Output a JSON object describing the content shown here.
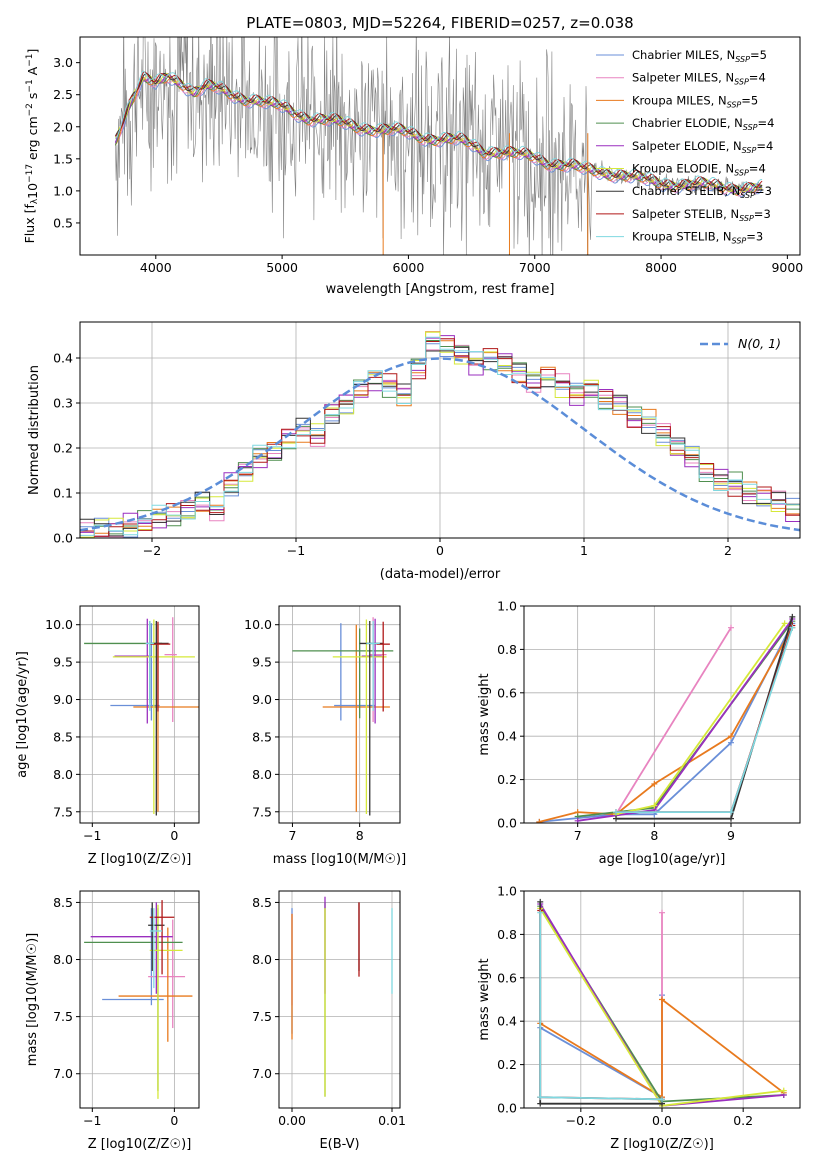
{
  "title": "PLATE=0803, MJD=52264, FIBERID=0257, z=0.038",
  "colors": {
    "data_spectrum": "#808080",
    "normal_curve": "#5b8dd8",
    "grid": "#b0b0b0"
  },
  "models": [
    {
      "name": "Chabrier MILES",
      "nssp": "5",
      "color": "#6a8fd8"
    },
    {
      "name": "Salpeter MILES",
      "nssp": "4",
      "color": "#e884c0"
    },
    {
      "name": "Kroupa MILES",
      "nssp": "5",
      "color": "#e87a1e"
    },
    {
      "name": "Chabrier ELODIE",
      "nssp": "4",
      "color": "#4f8f4f"
    },
    {
      "name": "Salpeter ELODIE",
      "nssp": "4",
      "color": "#9a2fbf"
    },
    {
      "name": "Kroupa ELODIE",
      "nssp": "4",
      "color": "#d6e83a"
    },
    {
      "name": "Chabrier STELIB",
      "nssp": "3",
      "color": "#333333"
    },
    {
      "name": "Salpeter STELIB",
      "nssp": "3",
      "color": "#b01818"
    },
    {
      "name": "Kroupa STELIB",
      "nssp": "3",
      "color": "#7fd8e0"
    }
  ],
  "chart_data": [
    {
      "id": "spectrum",
      "type": "line",
      "title": "PLATE=0803, MJD=52264, FIBERID=0257, z=0.038",
      "xlabel": "wavelength [Angstrom, rest frame]",
      "ylabel_parts": [
        "Flux [f",
        "λ",
        "10",
        "−17",
        " erg cm",
        "−2",
        " s",
        "−1",
        " A",
        "−1",
        "]"
      ],
      "xlim": [
        3400,
        9100
      ],
      "ylim": [
        0,
        3.4
      ],
      "xticks": [
        "4000",
        "5000",
        "6000",
        "7000",
        "8000",
        "9000"
      ],
      "yticks": [
        "0.5",
        "1.0",
        "1.5",
        "2.0",
        "2.5",
        "3.0"
      ],
      "grid": false,
      "legend_position": "top-right",
      "legend_nssp_label": "SSP",
      "model_continuum": {
        "x": [
          3680,
          3800,
          3900,
          4000,
          4100,
          4200,
          4300,
          4400,
          4500,
          4600,
          4700,
          4800,
          4900,
          5000,
          5100,
          5200,
          5300,
          5400,
          5500,
          5600,
          5700,
          5800,
          5900,
          6000,
          6100,
          6200,
          6300,
          6400,
          6500,
          6600,
          6700,
          6800,
          6900,
          7000,
          7100,
          7200,
          7300,
          7400,
          7500,
          7600,
          7700,
          7800,
          7900,
          8000,
          8200,
          8400,
          8600,
          8800
        ],
        "y": [
          1.8,
          2.4,
          2.75,
          2.65,
          2.78,
          2.7,
          2.55,
          2.62,
          2.58,
          2.5,
          2.45,
          2.42,
          2.35,
          2.3,
          2.22,
          2.15,
          2.12,
          2.08,
          2.04,
          2.0,
          1.98,
          1.95,
          1.93,
          1.9,
          1.85,
          1.82,
          1.8,
          1.78,
          1.72,
          1.62,
          1.62,
          1.58,
          1.55,
          1.52,
          1.45,
          1.42,
          1.38,
          1.32,
          1.3,
          1.28,
          1.25,
          1.2,
          1.15,
          1.12,
          1.1,
          1.08,
          1.05,
          1.03
        ]
      }
    },
    {
      "id": "residuals",
      "type": "histogram",
      "xlabel": "(data-model)/error",
      "ylabel": "Normed distribution",
      "xlim": [
        -2.5,
        2.5
      ],
      "ylim": [
        0,
        0.48
      ],
      "xticks": [
        "−2",
        "−1",
        "0",
        "1",
        "2"
      ],
      "yticks": [
        "0.0",
        "0.1",
        "0.2",
        "0.3",
        "0.4"
      ],
      "grid": true,
      "legend_position": "top-right",
      "normal_label": "N(0, 1)",
      "bin_width": 0.1,
      "bins_from": -2.5,
      "base_heights": [
        0.015,
        0.02,
        0.022,
        0.028,
        0.035,
        0.045,
        0.05,
        0.06,
        0.08,
        0.065,
        0.12,
        0.15,
        0.18,
        0.19,
        0.22,
        0.24,
        0.23,
        0.28,
        0.3,
        0.33,
        0.35,
        0.34,
        0.32,
        0.38,
        0.44,
        0.43,
        0.41,
        0.39,
        0.4,
        0.39,
        0.37,
        0.35,
        0.36,
        0.34,
        0.32,
        0.33,
        0.31,
        0.3,
        0.27,
        0.26,
        0.23,
        0.2,
        0.18,
        0.15,
        0.13,
        0.12,
        0.1,
        0.09,
        0.08,
        0.06,
        0.05,
        0.045,
        0.04,
        0.035,
        0.03
      ]
    },
    {
      "id": "age-vs-z",
      "type": "scatter",
      "xlabel": "Z [log10(Z/Z☉)]",
      "ylabel": "age  [log10(age/yr)]",
      "xlim": [
        -1.15,
        0.3
      ],
      "ylim": [
        7.35,
        10.25
      ],
      "xticks": [
        "−1",
        "0"
      ],
      "yticks": [
        "7.5",
        "8.0",
        "8.5",
        "9.0",
        "9.5",
        "10.0"
      ],
      "grid": true,
      "points": [
        {
          "x": -0.28,
          "y": 8.92,
          "xerr": [
            0.5,
            0.1
          ],
          "yerr": [
            0.2,
            1.1
          ]
        },
        {
          "x": -0.02,
          "y": 9.6,
          "xerr": [
            0.1,
            0.05
          ],
          "yerr": [
            0.9,
            0.5
          ]
        },
        {
          "x": -0.2,
          "y": 8.9,
          "xerr": [
            0.3,
            0.5
          ],
          "yerr": [
            1.4,
            1.1
          ]
        },
        {
          "x": -0.3,
          "y": 9.75,
          "xerr": [
            0.8,
            0.15
          ],
          "yerr": [
            0.8,
            0.3
          ]
        },
        {
          "x": -0.33,
          "y": 9.58,
          "xerr": [
            0.4,
            0.05
          ],
          "yerr": [
            0.9,
            0.5
          ]
        },
        {
          "x": -0.25,
          "y": 9.57,
          "xerr": [
            0.5,
            0.5
          ],
          "yerr": [
            2.1,
            0.5
          ]
        },
        {
          "x": -0.22,
          "y": 9.75,
          "xerr": [
            0.05,
            0.15
          ],
          "yerr": [
            2.3,
            0.3
          ]
        },
        {
          "x": -0.2,
          "y": 9.74,
          "xerr": [
            0.1,
            0.15
          ],
          "yerr": [
            0.9,
            0.3
          ]
        },
        {
          "x": -0.3,
          "y": 9.75,
          "xerr": [
            0.05,
            0.05
          ],
          "yerr": [
            0.9,
            0.3
          ]
        }
      ]
    },
    {
      "id": "age-vs-mass",
      "type": "scatter",
      "xlabel": "mass [log10(M/M☉)]",
      "ylabel": "",
      "xlim": [
        6.8,
        8.6
      ],
      "ylim": [
        7.35,
        10.25
      ],
      "xticks": [
        "7",
        "8"
      ],
      "yticks": [
        "7.5",
        "8.0",
        "8.5",
        "9.0",
        "9.5",
        "10.0"
      ],
      "grid": true,
      "points": [
        {
          "x": 7.72,
          "y": 8.92,
          "xerr": [
            0.1,
            0.5
          ],
          "yerr": [
            0.2,
            1.1
          ]
        },
        {
          "x": 8.2,
          "y": 9.6,
          "xerr": [
            0.05,
            0.2
          ],
          "yerr": [
            0.9,
            0.5
          ]
        },
        {
          "x": 7.95,
          "y": 8.9,
          "xerr": [
            0.5,
            0.5
          ],
          "yerr": [
            1.4,
            1.1
          ]
        },
        {
          "x": 8.0,
          "y": 9.65,
          "xerr": [
            1.0,
            0.5
          ],
          "yerr": [
            0.9,
            0.3
          ]
        },
        {
          "x": 8.23,
          "y": 9.58,
          "xerr": [
            0.2,
            0.1
          ],
          "yerr": [
            0.9,
            0.5
          ]
        },
        {
          "x": 8.1,
          "y": 9.57,
          "xerr": [
            0.5,
            0.3
          ],
          "yerr": [
            2.1,
            0.5
          ]
        },
        {
          "x": 8.15,
          "y": 9.75,
          "xerr": [
            0.15,
            0.2
          ],
          "yerr": [
            2.3,
            0.3
          ]
        },
        {
          "x": 8.35,
          "y": 9.74,
          "xerr": [
            0.1,
            0.1
          ],
          "yerr": [
            0.9,
            0.3
          ]
        },
        {
          "x": 8.2,
          "y": 9.75,
          "xerr": [
            0.1,
            0.1
          ],
          "yerr": [
            0.9,
            0.3
          ]
        }
      ]
    },
    {
      "id": "weight-vs-age",
      "type": "line",
      "xlabel": "age  [log10(age/yr)]",
      "ylabel": "mass weight",
      "xlim": [
        6.3,
        9.9
      ],
      "ylim": [
        0,
        1.0
      ],
      "xticks": [
        "7",
        "8",
        "9"
      ],
      "yticks": [
        "0.0",
        "0.2",
        "0.4",
        "0.6",
        "0.8",
        "1.0"
      ],
      "grid": true,
      "lines": [
        {
          "x": [
            6.5,
            7.5,
            8.0,
            9.0,
            9.8
          ],
          "y": [
            0.005,
            0.04,
            0.04,
            0.37,
            0.92
          ]
        },
        {
          "x": [
            7.5,
            9.0
          ],
          "y": [
            0.04,
            0.9
          ]
        },
        {
          "x": [
            6.5,
            7.0,
            7.5,
            8.0,
            9.0,
            9.8
          ],
          "y": [
            0.005,
            0.05,
            0.04,
            0.18,
            0.4,
            0.9
          ]
        },
        {
          "x": [
            7.0,
            8.0,
            9.8
          ],
          "y": [
            0.03,
            0.07,
            0.93
          ]
        },
        {
          "x": [
            7.0,
            8.0,
            9.8
          ],
          "y": [
            0.01,
            0.06,
            0.94
          ]
        },
        {
          "x": [
            7.5,
            8.0,
            9.7
          ],
          "y": [
            0.04,
            0.08,
            0.92
          ]
        },
        {
          "x": [
            7.5,
            9.0,
            9.8
          ],
          "y": [
            0.02,
            0.02,
            0.95
          ]
        },
        {
          "x": [
            7.5,
            9.0,
            9.8
          ],
          "y": [
            0.05,
            0.05,
            0.91
          ]
        },
        {
          "x": [
            7.5,
            9.0,
            9.8
          ],
          "y": [
            0.05,
            0.05,
            0.9
          ]
        }
      ]
    },
    {
      "id": "mass-vs-z",
      "type": "scatter",
      "xlabel": "Z [log10(Z/Z☉)]",
      "ylabel": "mass [log10(M/M☉)]",
      "xlim": [
        -1.15,
        0.3
      ],
      "ylim": [
        6.7,
        8.6
      ],
      "xticks": [
        "−1",
        "0"
      ],
      "yticks": [
        "7.0",
        "7.5",
        "8.0",
        "8.5"
      ],
      "grid": true,
      "points": [
        {
          "x": -0.28,
          "y": 7.65,
          "xerr": [
            0.6,
            0.15
          ],
          "yerr": [
            0.05,
            0.8
          ]
        },
        {
          "x": -0.02,
          "y": 7.85,
          "xerr": [
            0.3,
            0.15
          ],
          "yerr": [
            0.45,
            0.5
          ]
        },
        {
          "x": -0.08,
          "y": 7.68,
          "xerr": [
            0.6,
            0.3
          ],
          "yerr": [
            0.4,
            0.6
          ]
        },
        {
          "x": -0.2,
          "y": 8.15,
          "xerr": [
            0.9,
            0.3
          ],
          "yerr": [
            1.3,
            0.3
          ]
        },
        {
          "x": -0.22,
          "y": 8.2,
          "xerr": [
            0.8,
            0.2
          ],
          "yerr": [
            0.5,
            0.3
          ]
        },
        {
          "x": -0.2,
          "y": 8.08,
          "xerr": [
            0.1,
            0.3
          ],
          "yerr": [
            1.3,
            0.4
          ]
        },
        {
          "x": -0.27,
          "y": 8.3,
          "xerr": [
            0.05,
            0.15
          ],
          "yerr": [
            0.4,
            0.2
          ]
        },
        {
          "x": -0.15,
          "y": 8.37,
          "xerr": [
            0.15,
            0.15
          ],
          "yerr": [
            0.5,
            0.15
          ]
        },
        {
          "x": -0.25,
          "y": 8.25,
          "xerr": [
            0.05,
            0.1
          ],
          "yerr": [
            0.5,
            0.2
          ]
        }
      ]
    },
    {
      "id": "mass-vs-ebv",
      "type": "scatter",
      "xlabel": "E(B-V)",
      "ylabel": "",
      "xlim": [
        -0.0013,
        0.0108
      ],
      "ylim": [
        6.7,
        8.6
      ],
      "xticks": [
        "0.00",
        "0.01"
      ],
      "yticks": [
        "7.0",
        "7.5",
        "8.0",
        "8.5"
      ],
      "grid": true,
      "points": [
        {
          "x": 0.0,
          "y": 8.0,
          "xerr": [
            0,
            0
          ],
          "yerr": [
            0.65,
            0.45
          ]
        },
        {
          "x": 0.0,
          "y": 8.0,
          "xerr": [
            0,
            0
          ],
          "yerr": [
            0.4,
            0.4
          ]
        },
        {
          "x": 0.0,
          "y": 8.0,
          "xerr": [
            0,
            0
          ],
          "yerr": [
            0.7,
            0.4
          ]
        },
        {
          "x": 0.0033,
          "y": 8.1,
          "xerr": [
            0,
            0
          ],
          "yerr": [
            1.3,
            0.4
          ]
        },
        {
          "x": 0.0033,
          "y": 8.2,
          "xerr": [
            0,
            0
          ],
          "yerr": [
            0.5,
            0.35
          ]
        },
        {
          "x": 0.0033,
          "y": 8.0,
          "xerr": [
            0,
            0
          ],
          "yerr": [
            1.2,
            0.45
          ]
        },
        {
          "x": 0.0067,
          "y": 8.3,
          "xerr": [
            0,
            0
          ],
          "yerr": [
            0.4,
            0.2
          ]
        },
        {
          "x": 0.0067,
          "y": 8.2,
          "xerr": [
            0,
            0
          ],
          "yerr": [
            0.35,
            0.3
          ]
        },
        {
          "x": 0.01,
          "y": 8.1,
          "xerr": [
            0,
            0
          ],
          "yerr": [
            0.4,
            0.35
          ]
        }
      ]
    },
    {
      "id": "weight-vs-z",
      "type": "line",
      "xlabel": "Z [log10(Z/Z☉)]",
      "ylabel": "mass weight",
      "xlim": [
        -0.34,
        0.34
      ],
      "ylim": [
        0,
        1.0
      ],
      "xticks": [
        "−0.2",
        "0.0",
        "0.2"
      ],
      "yticks": [
        "0.0",
        "0.2",
        "0.4",
        "0.6",
        "0.8",
        "1.0"
      ],
      "grid": true,
      "lines": [
        {
          "x": [
            -0.3,
            0.0,
            0.0,
            0.0
          ],
          "y": [
            0.37,
            0.05,
            0.52,
            0.01
          ]
        },
        {
          "x": [
            0.0,
            0.0
          ],
          "y": [
            0.9,
            0.05
          ]
        },
        {
          "x": [
            -0.3,
            0.0,
            0.0,
            0.3
          ],
          "y": [
            0.39,
            0.05,
            0.5,
            0.07
          ]
        },
        {
          "x": [
            -0.3,
            0.0,
            0.3
          ],
          "y": [
            0.93,
            0.03,
            0.06
          ]
        },
        {
          "x": [
            -0.3,
            0.0,
            0.3
          ],
          "y": [
            0.94,
            0.01,
            0.06
          ]
        },
        {
          "x": [
            -0.3,
            0.0,
            0.3
          ],
          "y": [
            0.92,
            0.01,
            0.08
          ]
        },
        {
          "x": [
            -0.3,
            -0.3,
            0.0
          ],
          "y": [
            0.95,
            0.02,
            0.02
          ]
        },
        {
          "x": [
            -0.3,
            -0.3,
            0.0
          ],
          "y": [
            0.91,
            0.05,
            0.04
          ]
        },
        {
          "x": [
            -0.3,
            -0.3,
            0.0
          ],
          "y": [
            0.9,
            0.05,
            0.04
          ]
        }
      ]
    }
  ]
}
